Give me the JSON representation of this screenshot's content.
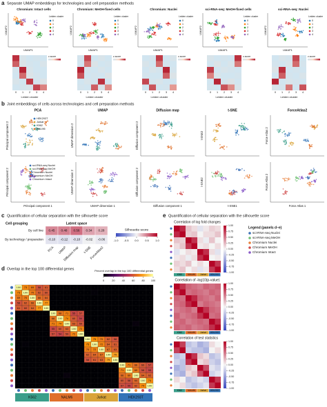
{
  "panel_a": {
    "label": "a",
    "title": "Separate UMAP embeddings for technologies and cell preparation methods",
    "x_label": "UMAP1",
    "y_label": "UMAP2",
    "legend_title": "Leiden cluster",
    "heatmap_x_label": "Leiden cluster",
    "colorbar_title": "z-score",
    "clusters": [
      "0",
      "1",
      "2",
      "3",
      "4"
    ],
    "cluster_colors": [
      "#1f77b4",
      "#ff7f0e",
      "#2ca02c",
      "#d62728",
      "#9467bd"
    ],
    "plots": [
      {
        "title": "Chromium: Intact cells",
        "matrix": [
          [
            2.8,
            0.2,
            0,
            0.1,
            0
          ],
          [
            2.4,
            0.3,
            0.1,
            0,
            0.2
          ],
          [
            0.1,
            2.9,
            0.2,
            0,
            0
          ],
          [
            0,
            2.3,
            0.3,
            0.1,
            0
          ],
          [
            0.2,
            0,
            2.7,
            0.1,
            0.3
          ],
          [
            0,
            0.1,
            0.2,
            2.6,
            2.1
          ]
        ]
      },
      {
        "title": "Chromium: MeOH-fixed cells",
        "matrix": [
          [
            0.1,
            2.6,
            0,
            0.2,
            0
          ],
          [
            0,
            2.2,
            0.3,
            0,
            0.1
          ],
          [
            2.9,
            0.1,
            0,
            0.2,
            0
          ],
          [
            2.5,
            0,
            0.1,
            0,
            0.3
          ],
          [
            0,
            0.2,
            0.1,
            2.8,
            0
          ],
          [
            0.1,
            0,
            2.4,
            0.2,
            2.0
          ]
        ]
      },
      {
        "title": "Chromium: Nuclei",
        "matrix": [
          [
            0,
            0.1,
            2.7,
            0,
            0.2
          ],
          [
            0.2,
            0,
            2.3,
            0.1,
            0
          ],
          [
            0,
            0.2,
            0.1,
            2.9,
            0.1
          ],
          [
            0.1,
            0,
            0,
            2.4,
            0.3
          ],
          [
            2.6,
            0.1,
            0.2,
            0,
            0
          ],
          [
            0,
            2.5,
            0,
            0.1,
            1.9
          ]
        ]
      },
      {
        "title": "sci-RNA-seq: MeOH-fixed cells",
        "matrix": [
          [
            0.2,
            0,
            0.1,
            0,
            2.8
          ],
          [
            0,
            0.3,
            0,
            0.2,
            2.2
          ],
          [
            2.7,
            0,
            0.2,
            0.1,
            0
          ],
          [
            2.1,
            0.2,
            0,
            0,
            0.1
          ],
          [
            0,
            2.9,
            0.1,
            0.3,
            0
          ],
          [
            0.1,
            0,
            2.5,
            2.0,
            0.2
          ]
        ]
      },
      {
        "title": "sci-RNA-seq: Nuclei",
        "matrix": [
          [
            0,
            0.2,
            0.1,
            2.6,
            0
          ],
          [
            0.1,
            0,
            0.2,
            2.3,
            0.1
          ],
          [
            0.3,
            2.8,
            0,
            0.1,
            0
          ],
          [
            0,
            2.4,
            0.1,
            0,
            0.2
          ],
          [
            2.9,
            0,
            0.2,
            0.1,
            0
          ],
          [
            0.2,
            0.1,
            2.2,
            0,
            2.5
          ]
        ]
      }
    ]
  },
  "panel_b": {
    "label": "b",
    "title": "Joint embeddings of cells across technologies and cell preparation methods",
    "columns": [
      {
        "title": "PCA",
        "x_label": "Principal component 1",
        "y_label": "Principal component 2"
      },
      {
        "title": "UMAP",
        "x_label": "UMAP dimension 1",
        "y_label": "UMAP dimension 2"
      },
      {
        "title": "Diffusion map",
        "x_label": "Diffusion component 1",
        "y_label": "Diffusion component 2"
      },
      {
        "title": "t-SNE",
        "x_label": "t-SNE1",
        "y_label": "t-SNE2"
      },
      {
        "title": "ForceAtlas2",
        "x_label": "Force Atlas 1",
        "y_label": "Force Atlas 2"
      }
    ],
    "cell_lines": [
      {
        "name": "HEK293T",
        "color": "#3274b8"
      },
      {
        "name": "Jurkat",
        "color": "#d9a43a"
      },
      {
        "name": "K562",
        "color": "#3a9e8a"
      },
      {
        "name": "NALM6",
        "color": "#e0702b"
      }
    ],
    "technologies": [
      {
        "name": "sci-RNA-seq Nuclei",
        "color": "#3b6fb6"
      },
      {
        "name": "sci-RNA-seq MeOH",
        "color": "#6fbf73"
      },
      {
        "name": "Chromium Nuclei",
        "color": "#e8803a"
      },
      {
        "name": "Chromium MeOH",
        "color": "#d04a4a"
      },
      {
        "name": "Chromium Intact",
        "color": "#8a5ac8"
      }
    ]
  },
  "panel_c": {
    "label": "c",
    "title": "Quantification of cellular separation with the silhouette score",
    "row_header": "Cell grouping",
    "col_header": "Latent space",
    "rows": [
      "By cell line",
      "By technology / preparation"
    ],
    "columns": [
      "PCA",
      "UMAP",
      "Diffusion map",
      "t-SNE",
      "ForceAtlas2"
    ],
    "values": [
      [
        0.45,
        0.48,
        0.56,
        0.34,
        0.28
      ],
      [
        -0.1,
        -0.12,
        -0.1,
        -0.02,
        -0.06
      ]
    ],
    "value_labels": [
      [
        "0.45",
        "0.48",
        "0.56",
        "0.34",
        "0.28"
      ],
      [
        "-0.10",
        "-0.12",
        "-0.10",
        "-0.02",
        "-0.06"
      ]
    ],
    "colorbar_title": "Silhouette score",
    "colorbar_ticks": [
      {
        "value": -1,
        "label": "-1.0"
      },
      {
        "value": -0.5,
        "label": "-0.5"
      },
      {
        "value": 0,
        "label": "0.0"
      },
      {
        "value": 0.5,
        "label": "0.5"
      },
      {
        "value": 1,
        "label": "1.0"
      }
    ]
  },
  "panel_d": {
    "label": "d",
    "title": "Overlap in the top 100 differential genes",
    "colorbar_title": "Percent overlap in the top 100 differential genes",
    "colorbar_ticks": [
      0,
      20,
      40,
      60,
      80,
      100
    ],
    "groups": [
      "K562",
      "NALM6",
      "Jurkat",
      "HEK293T"
    ],
    "matrix": [
      [
        100,
        73,
        69,
        58,
        61,
        0,
        0,
        0,
        0,
        0,
        0,
        0,
        0,
        0,
        0,
        0,
        0,
        0,
        0,
        0
      ],
      [
        73,
        100,
        70,
        62,
        60,
        0,
        0,
        0,
        0,
        0,
        0,
        1,
        0,
        0,
        0,
        0,
        0,
        0,
        0,
        0
      ],
      [
        69,
        70,
        100,
        66,
        64,
        0,
        0,
        0,
        0,
        0,
        0,
        0,
        0,
        0,
        0,
        0,
        0,
        0,
        0,
        0
      ],
      [
        58,
        62,
        66,
        100,
        77,
        0,
        0,
        0,
        0,
        0,
        0,
        0,
        0,
        0,
        0,
        0,
        0,
        0,
        0,
        0
      ],
      [
        61,
        60,
        64,
        77,
        100,
        0,
        0,
        0,
        0,
        0,
        0,
        0,
        0,
        0,
        0,
        0,
        0,
        0,
        0,
        0
      ],
      [
        0,
        0,
        0,
        0,
        0,
        100,
        68,
        71,
        55,
        57,
        0,
        0,
        0,
        0,
        0,
        0,
        0,
        0,
        0,
        0
      ],
      [
        0,
        0,
        0,
        0,
        0,
        68,
        100,
        74,
        60,
        54,
        0,
        0,
        0,
        0,
        0,
        0,
        0,
        0,
        0,
        0
      ],
      [
        0,
        0,
        0,
        0,
        0,
        71,
        74,
        100,
        63,
        59,
        0,
        0,
        0,
        0,
        0,
        0,
        0,
        2,
        0,
        0
      ],
      [
        0,
        0,
        0,
        0,
        0,
        55,
        60,
        63,
        100,
        72,
        0,
        0,
        0,
        0,
        0,
        0,
        0,
        0,
        0,
        0
      ],
      [
        0,
        0,
        0,
        0,
        0,
        57,
        54,
        59,
        72,
        100,
        0,
        0,
        0,
        0,
        0,
        0,
        0,
        0,
        0,
        0
      ],
      [
        0,
        0,
        0,
        0,
        0,
        0,
        0,
        0,
        0,
        0,
        100,
        75,
        70,
        62,
        58,
        0,
        0,
        0,
        0,
        0
      ],
      [
        0,
        1,
        0,
        0,
        0,
        0,
        0,
        0,
        0,
        0,
        75,
        100,
        72,
        64,
        61,
        0,
        0,
        0,
        0,
        0
      ],
      [
        0,
        0,
        0,
        0,
        0,
        0,
        0,
        0,
        0,
        0,
        70,
        72,
        100,
        67,
        63,
        0,
        0,
        0,
        0,
        0
      ],
      [
        0,
        0,
        0,
        0,
        0,
        0,
        0,
        0,
        0,
        0,
        62,
        64,
        67,
        100,
        79,
        0,
        0,
        0,
        0,
        0
      ],
      [
        0,
        0,
        0,
        0,
        0,
        0,
        0,
        0,
        0,
        0,
        58,
        61,
        63,
        79,
        100,
        0,
        0,
        0,
        0,
        0
      ],
      [
        0,
        0,
        0,
        0,
        0,
        0,
        0,
        0,
        0,
        0,
        0,
        0,
        0,
        0,
        0,
        100,
        71,
        66,
        60,
        57
      ],
      [
        0,
        0,
        0,
        0,
        0,
        0,
        0,
        0,
        0,
        0,
        0,
        0,
        0,
        0,
        0,
        71,
        100,
        69,
        58,
        55
      ],
      [
        0,
        0,
        0,
        0,
        0,
        0,
        0,
        2,
        0,
        0,
        0,
        0,
        0,
        0,
        0,
        66,
        69,
        100,
        64,
        62
      ],
      [
        0,
        0,
        0,
        0,
        0,
        0,
        0,
        0,
        0,
        0,
        0,
        0,
        0,
        0,
        0,
        60,
        58,
        64,
        100,
        74
      ],
      [
        0,
        0,
        0,
        0,
        0,
        0,
        0,
        0,
        0,
        0,
        0,
        0,
        0,
        0,
        0,
        57,
        55,
        62,
        74,
        100
      ]
    ]
  },
  "panel_e": {
    "label": "e",
    "title": "Quantification of cellular separation with the silhouette score",
    "legend_title": "Legend (panels d–e)",
    "colorbar_ticks": [
      {
        "value": 1,
        "label": "1.00"
      },
      {
        "value": 0.75,
        "label": "0.75"
      },
      {
        "value": 0.5,
        "label": "0.50"
      },
      {
        "value": 0.25,
        "label": "0.25"
      },
      {
        "value": 0,
        "label": "0.00"
      },
      {
        "value": -0.25,
        "label": "-0.25"
      },
      {
        "value": -0.5,
        "label": "-0.50"
      },
      {
        "value": -0.75,
        "label": "-0.75"
      },
      {
        "value": -1,
        "label": "-1.00"
      }
    ],
    "heatmaps": [
      {
        "title": "Correlation of log fold changes",
        "matrix": [
          [
            1,
            0.85,
            0.2,
            0.1,
            -0.1,
            0.05,
            0.15,
            0.1
          ],
          [
            0.85,
            1,
            0.15,
            0.2,
            0,
            0.1,
            0.1,
            0.2
          ],
          [
            0.2,
            0.15,
            1,
            0.8,
            0.1,
            -0.05,
            0.2,
            0
          ],
          [
            0.1,
            0.2,
            0.8,
            1,
            0.05,
            0.1,
            0,
            0.1
          ],
          [
            -0.1,
            0,
            0.1,
            0.05,
            1,
            0.82,
            0.1,
            -0.1
          ],
          [
            0.05,
            0.1,
            -0.05,
            0.1,
            0.82,
            1,
            0,
            0.05
          ],
          [
            0.15,
            0.1,
            0.2,
            0,
            0.1,
            0,
            1,
            0.78
          ],
          [
            0.1,
            0.2,
            0,
            0.1,
            -0.1,
            0.05,
            0.78,
            1
          ]
        ]
      },
      {
        "title": "Correlation of -log10(p-value)",
        "matrix": [
          [
            1,
            0.8,
            0.6,
            0.55,
            0.5,
            0.6,
            0.55,
            0.6
          ],
          [
            0.8,
            1,
            0.55,
            0.6,
            0.55,
            0.5,
            0.6,
            0.55
          ],
          [
            0.6,
            0.55,
            1,
            0.85,
            0.6,
            0.55,
            0.5,
            0.6
          ],
          [
            0.55,
            0.6,
            0.85,
            1,
            0.5,
            0.6,
            0.55,
            0.5
          ],
          [
            0.5,
            0.55,
            0.6,
            0.5,
            1,
            0.8,
            0.6,
            0.55
          ],
          [
            0.6,
            0.5,
            0.55,
            0.6,
            0.8,
            1,
            0.55,
            0.6
          ],
          [
            0.55,
            0.6,
            0.5,
            0.55,
            0.6,
            0.55,
            1,
            0.82
          ],
          [
            0.6,
            0.55,
            0.6,
            0.5,
            0.55,
            0.6,
            0.82,
            1
          ]
        ]
      },
      {
        "title": "Correlation of test statistics",
        "matrix": [
          [
            1,
            0.75,
            -0.3,
            -0.2,
            -0.4,
            -0.3,
            0.1,
            0
          ],
          [
            0.75,
            1,
            -0.2,
            -0.3,
            -0.3,
            -0.4,
            0,
            0.1
          ],
          [
            -0.3,
            -0.2,
            1,
            0.8,
            0.2,
            0.1,
            -0.3,
            -0.2
          ],
          [
            -0.2,
            -0.3,
            0.8,
            1,
            0.1,
            0.2,
            -0.2,
            -0.3
          ],
          [
            -0.4,
            -0.3,
            0.2,
            0.1,
            1,
            0.7,
            -0.1,
            -0.2
          ],
          [
            -0.3,
            -0.4,
            0.1,
            0.2,
            0.7,
            1,
            -0.2,
            -0.1
          ],
          [
            0.1,
            0,
            -0.3,
            -0.2,
            -0.1,
            -0.2,
            1,
            0.78
          ],
          [
            0,
            0.1,
            -0.2,
            -0.3,
            -0.2,
            -0.1,
            0.78,
            1
          ]
        ]
      }
    ]
  }
}
